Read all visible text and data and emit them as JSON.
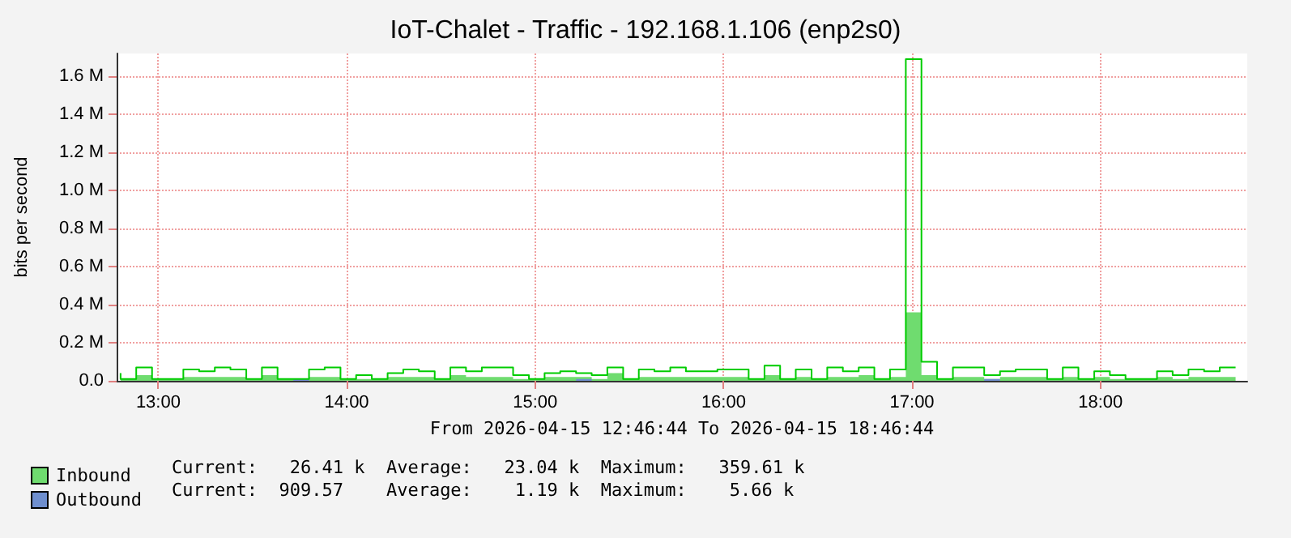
{
  "chart_data": {
    "type": "step",
    "title": "IoT-Chalet - Traffic - 192.168.1.106 (enp2s0)",
    "xlabel": "From 2026-04-15 12:46:44 To 2026-04-15 18:46:44",
    "ylabel": "bits per second",
    "x": [
      12.8,
      12.883,
      12.967,
      13.05,
      13.133,
      13.217,
      13.3,
      13.383,
      13.467,
      13.55,
      13.633,
      13.717,
      13.8,
      13.883,
      13.967,
      14.05,
      14.133,
      14.217,
      14.3,
      14.383,
      14.467,
      14.55,
      14.633,
      14.717,
      14.8,
      14.883,
      14.967,
      15.05,
      15.133,
      15.217,
      15.3,
      15.383,
      15.467,
      15.55,
      15.633,
      15.717,
      15.8,
      15.883,
      15.967,
      16.05,
      16.133,
      16.217,
      16.3,
      16.383,
      16.467,
      16.55,
      16.633,
      16.717,
      16.8,
      16.883,
      16.967,
      17.05,
      17.133,
      17.217,
      17.3,
      17.383,
      17.467,
      17.55,
      17.633,
      17.717,
      17.8,
      17.883,
      17.967,
      18.05,
      18.133,
      18.217,
      18.3,
      18.383,
      18.467,
      18.55,
      18.633,
      18.717
    ],
    "series": [
      {
        "name": "Inbound",
        "type": "area",
        "color": "#6fdc6f",
        "values": [
          0.02,
          0.01,
          0.03,
          0.01,
          0.01,
          0.02,
          0.02,
          0.02,
          0.02,
          0.01,
          0.03,
          0.01,
          0.01,
          0.02,
          0.02,
          0.01,
          0.01,
          0.01,
          0.02,
          0.02,
          0.02,
          0.01,
          0.03,
          0.02,
          0.02,
          0.02,
          0.01,
          0.01,
          0.02,
          0.02,
          0.02,
          0.01,
          0.04,
          0.01,
          0.02,
          0.02,
          0.02,
          0.02,
          0.02,
          0.02,
          0.02,
          0.01,
          0.03,
          0.01,
          0.02,
          0.01,
          0.02,
          0.02,
          0.03,
          0.01,
          0.02,
          0.36,
          0.03,
          0.01,
          0.02,
          0.02,
          0.01,
          0.02,
          0.02,
          0.02,
          0.01,
          0.02,
          0.01,
          0.02,
          0.01,
          0.01,
          0.01,
          0.02,
          0.01,
          0.02,
          0.02,
          0.02
        ]
      },
      {
        "type": "step",
        "color": "#00cc00",
        "values": [
          0.04,
          0.01,
          0.07,
          0.01,
          0.01,
          0.06,
          0.05,
          0.07,
          0.06,
          0.01,
          0.07,
          0.01,
          0.01,
          0.06,
          0.07,
          0.01,
          0.03,
          0.01,
          0.04,
          0.06,
          0.05,
          0.01,
          0.07,
          0.05,
          0.07,
          0.07,
          0.03,
          0.01,
          0.04,
          0.05,
          0.04,
          0.03,
          0.07,
          0.01,
          0.06,
          0.05,
          0.07,
          0.05,
          0.05,
          0.06,
          0.06,
          0.01,
          0.08,
          0.01,
          0.06,
          0.01,
          0.07,
          0.05,
          0.07,
          0.01,
          0.06,
          1.69,
          0.1,
          0.01,
          0.07,
          0.07,
          0.03,
          0.05,
          0.06,
          0.06,
          0.01,
          0.07,
          0.01,
          0.05,
          0.03,
          0.01,
          0.01,
          0.05,
          0.03,
          0.06,
          0.05,
          0.07
        ]
      },
      {
        "name": "Outbound",
        "type": "area",
        "color": "#6f8fcf",
        "values": [
          0,
          0,
          0,
          0,
          0,
          0,
          0,
          0,
          0,
          0,
          0,
          0,
          0.01,
          0,
          0,
          0,
          0,
          0,
          0,
          0,
          0,
          0,
          0,
          0,
          0,
          0,
          0,
          0,
          0,
          0,
          0.01,
          0,
          0,
          0,
          0,
          0,
          0,
          0,
          0,
          0,
          0,
          0,
          0,
          0,
          0,
          0,
          0,
          0,
          0,
          0,
          0,
          0,
          0,
          0,
          0,
          0,
          0.01,
          0,
          0,
          0,
          0,
          0,
          0,
          0,
          0,
          0,
          0,
          0,
          0,
          0,
          0,
          0
        ]
      }
    ],
    "xlim": [
      12.779,
      18.779
    ],
    "xticks": [
      {
        "value": 13,
        "label": "13:00"
      },
      {
        "value": 14,
        "label": "14:00"
      },
      {
        "value": 15,
        "label": "15:00"
      },
      {
        "value": 16,
        "label": "16:00"
      },
      {
        "value": 17,
        "label": "17:00"
      },
      {
        "value": 18,
        "label": "18:00"
      }
    ],
    "ylim": [
      0,
      1.72
    ],
    "yticks": [
      {
        "value": 0,
        "label": "0.0"
      },
      {
        "value": 0.2,
        "label": "0.2 M"
      },
      {
        "value": 0.4,
        "label": "0.4 M"
      },
      {
        "value": 0.6,
        "label": "0.6 M"
      },
      {
        "value": 0.8,
        "label": "0.8 M"
      },
      {
        "value": 1.0,
        "label": "1.0 M"
      },
      {
        "value": 1.2,
        "label": "1.2 M"
      },
      {
        "value": 1.4,
        "label": "1.4 M"
      },
      {
        "value": 1.6,
        "label": "1.6 M"
      }
    ],
    "grid": true,
    "legend": "bottom left",
    "marker": "none",
    "line_style": "solid",
    "annotations": [
      "Current:   26.41 k  Average:   23.04 k  Maximum:   359.61 k",
      "Current:  909.57    Average:    1.19 k  Maximum:    5.66 k"
    ]
  }
}
